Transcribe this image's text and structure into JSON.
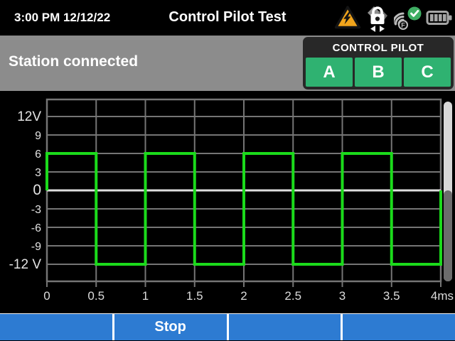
{
  "header": {
    "datetime": "3:00 PM 12/12/22",
    "title": "Control Pilot Test",
    "status_icons": [
      {
        "name": "high-voltage-warning-icon",
        "color": "#f2a51c"
      },
      {
        "name": "lock-probe-icon",
        "color": "#ffffff"
      },
      {
        "name": "wifi-status-icon",
        "label": "F",
        "badge": "check",
        "badge_color": "#3fae63"
      },
      {
        "name": "battery-level-icon",
        "level": "full"
      }
    ]
  },
  "status_bar": {
    "message": "Station connected"
  },
  "control_pilot": {
    "label": "CONTROL PILOT",
    "buttons": [
      "A",
      "B",
      "C"
    ],
    "button_color": "#2fb271"
  },
  "chart_data": {
    "type": "line",
    "x_unit": "ms",
    "y_unit": "V",
    "xlim": [
      0,
      4
    ],
    "ylim": [
      -12,
      12
    ],
    "grid": true,
    "zero_line_emphasis": true,
    "x_ticks": [
      {
        "value": 0,
        "label": "0"
      },
      {
        "value": 0.5,
        "label": "0.5"
      },
      {
        "value": 1,
        "label": "1"
      },
      {
        "value": 1.5,
        "label": "1.5"
      },
      {
        "value": 2,
        "label": "2"
      },
      {
        "value": 2.5,
        "label": "2.5"
      },
      {
        "value": 3,
        "label": "3"
      },
      {
        "value": 3.5,
        "label": "3.5"
      },
      {
        "value": 4,
        "label": "4ms"
      }
    ],
    "y_ticks": [
      {
        "value": 12,
        "label": "12V"
      },
      {
        "value": 9,
        "label": "9"
      },
      {
        "value": 6,
        "label": "6"
      },
      {
        "value": 3,
        "label": "3"
      },
      {
        "value": 0,
        "label": "0"
      },
      {
        "value": -3,
        "label": "-3"
      },
      {
        "value": -6,
        "label": "-6"
      },
      {
        "value": -9,
        "label": "-9"
      },
      {
        "value": -12,
        "label": "-12 V"
      }
    ],
    "series": [
      {
        "name": "control-pilot-voltage",
        "color": "#1bdb1b",
        "points": [
          [
            0,
            0
          ],
          [
            0,
            6
          ],
          [
            0.5,
            6
          ],
          [
            0.5,
            -12
          ],
          [
            1,
            -12
          ],
          [
            1,
            6
          ],
          [
            1.5,
            6
          ],
          [
            1.5,
            -12
          ],
          [
            2,
            -12
          ],
          [
            2,
            6
          ],
          [
            2.5,
            6
          ],
          [
            2.5,
            -12
          ],
          [
            3,
            -12
          ],
          [
            3,
            6
          ],
          [
            3.5,
            6
          ],
          [
            3.5,
            -12
          ],
          [
            4,
            -12
          ],
          [
            4,
            0
          ]
        ]
      }
    ]
  },
  "footer": {
    "softkeys": [
      "",
      "Stop",
      "",
      ""
    ]
  },
  "colors": {
    "footer_blue": "#2d7bd2",
    "status_bar_gray": "#8c8c8c",
    "panel_dark": "#282828",
    "waveform_green": "#1bdb1b",
    "grid_gray": "#757575",
    "zero_line": "#dedede",
    "warning_yellow": "#f2a51c",
    "pilot_button_green": "#2fb271"
  }
}
